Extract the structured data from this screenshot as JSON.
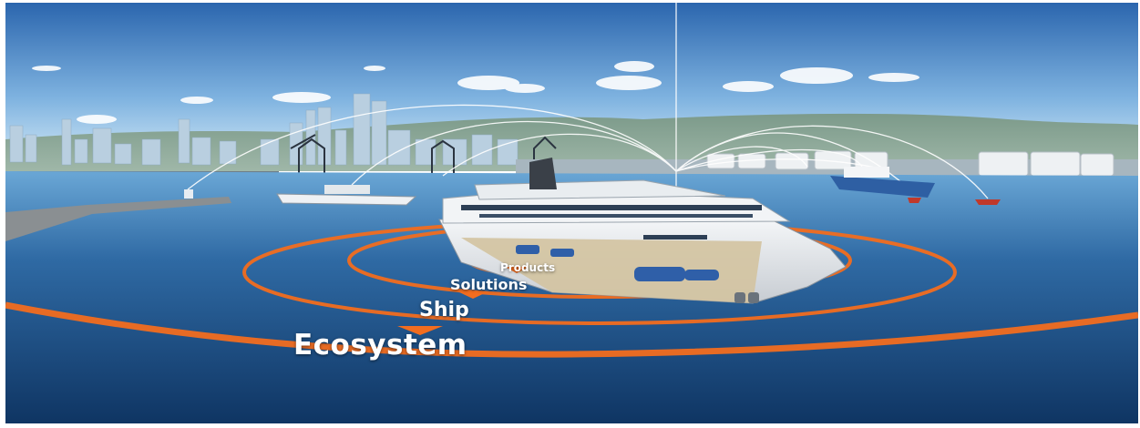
{
  "labels": {
    "products": "Products",
    "solutions": "Solutions",
    "ship": "Ship",
    "ecosystem": "Ecosystem"
  },
  "colors": {
    "ring_orange": "#f26d1f",
    "sea_dark": "#143f73",
    "sea_light": "#5f9bd0",
    "sky_top": "#2f6db3",
    "sky_bottom": "#bcdcf2",
    "hull": "#e9ecef",
    "signal_lines": "#ffffff"
  },
  "icons": [
    "ship-illustration",
    "tower-icon",
    "tank-icon",
    "crane-icon"
  ]
}
